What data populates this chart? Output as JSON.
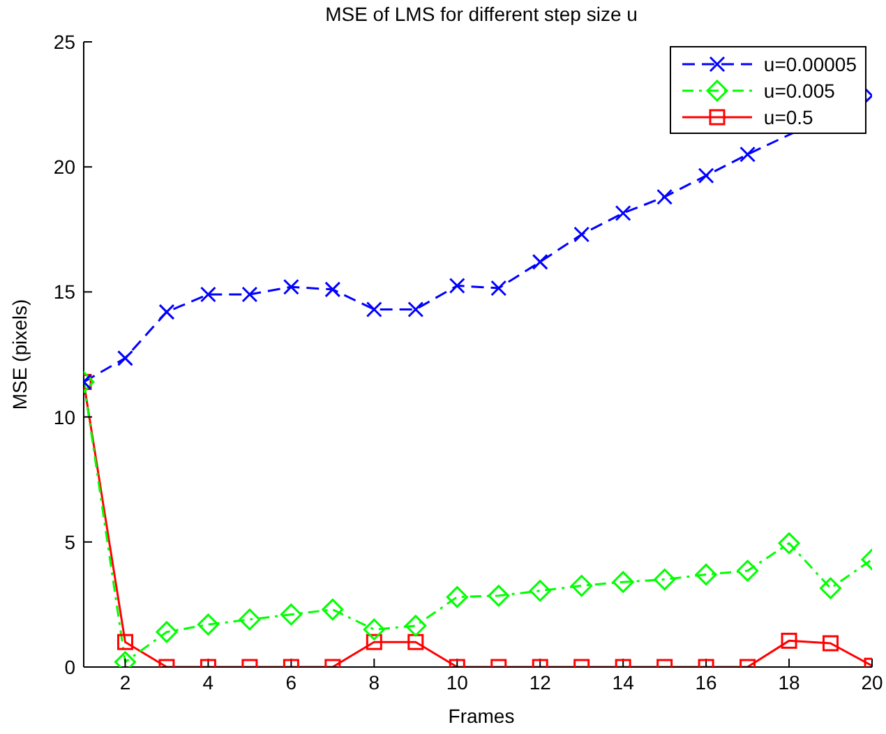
{
  "chart_data": {
    "type": "line",
    "title": "MSE of LMS for different step size u",
    "xlabel": "Frames",
    "ylabel": "MSE (pixels)",
    "x": [
      1,
      2,
      3,
      4,
      5,
      6,
      7,
      8,
      9,
      10,
      11,
      12,
      13,
      14,
      15,
      16,
      17,
      18,
      19,
      20
    ],
    "xlim": [
      1,
      20
    ],
    "xticks": [
      2,
      4,
      6,
      8,
      10,
      12,
      14,
      16,
      18,
      20
    ],
    "ylim": [
      0,
      25
    ],
    "yticks": [
      0,
      5,
      10,
      15,
      20,
      25
    ],
    "grid": false,
    "legend": "top right",
    "series": [
      {
        "name": "u=0.00005",
        "color": "#0000ff",
        "marker": "cross",
        "line_style": "dashed",
        "values": [
          11.4,
          12.35,
          14.2,
          14.9,
          14.9,
          15.2,
          15.1,
          14.3,
          14.3,
          15.25,
          15.15,
          16.2,
          17.3,
          18.15,
          18.8,
          19.65,
          20.5,
          null,
          null,
          22.85
        ]
      },
      {
        "name": "u=0.005",
        "color": "#00ff00",
        "marker": "diamond",
        "line_style": "dotted",
        "values": [
          11.4,
          0.2,
          1.4,
          1.7,
          1.9,
          2.1,
          2.3,
          1.5,
          1.65,
          2.8,
          2.85,
          3.05,
          3.25,
          3.4,
          3.5,
          3.7,
          3.85,
          4.95,
          3.15,
          4.3
        ]
      },
      {
        "name": "u=0.5",
        "color": "#ff0000",
        "marker": "square",
        "line_style": "solid",
        "values": [
          11.4,
          1.0,
          0,
          0,
          0,
          0,
          0,
          1.0,
          1.0,
          0,
          0,
          0,
          0,
          0,
          0,
          0,
          0,
          1.05,
          0.95,
          0.05
        ]
      }
    ]
  }
}
